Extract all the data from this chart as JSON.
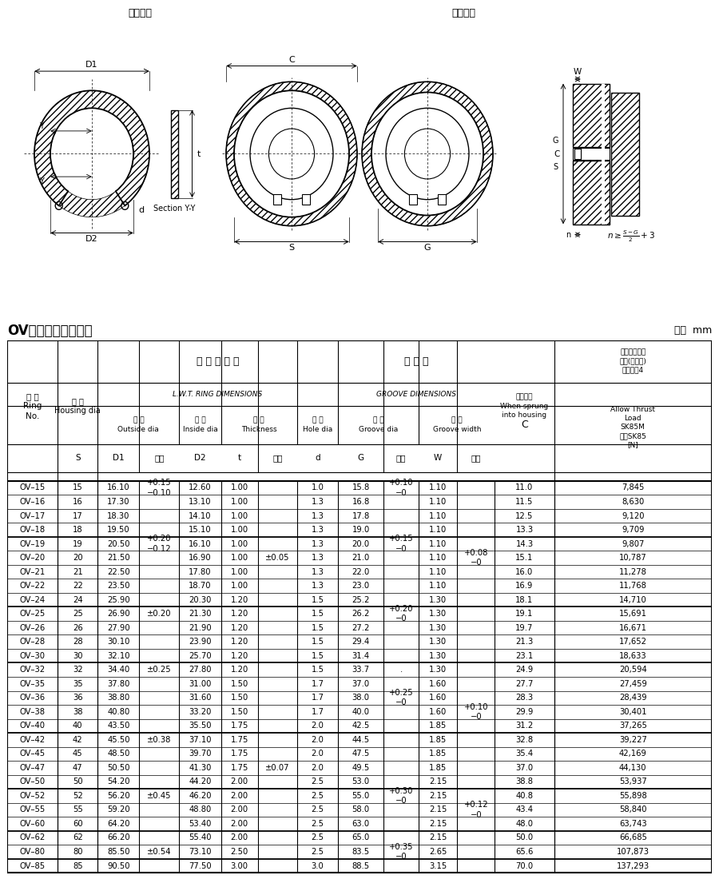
{
  "title_left": "OV型リング（穴用）",
  "title_right": "単位  mm",
  "diagram_label_free": "自由状態",
  "diagram_label_use": "使用状態",
  "rows": [
    [
      "OV–15",
      "15",
      "16.10",
      "+0.15\n−0.10",
      "12.60",
      "1.00",
      "",
      "1.0",
      "15.8",
      "+0.10\n−0",
      "1.10",
      "",
      "11.0",
      "7,845"
    ],
    [
      "OV–16",
      "16",
      "17.30",
      "",
      "13.10",
      "1.00",
      "",
      "1.3",
      "16.8",
      "",
      "1.10",
      "",
      "11.5",
      "8,630"
    ],
    [
      "OV–17",
      "17",
      "18.30",
      "",
      "14.10",
      "1.00",
      "",
      "1.3",
      "17.8",
      "",
      "1.10",
      "",
      "12.5",
      "9,120"
    ],
    [
      "OV–18",
      "18",
      "19.50",
      "",
      "15.10",
      "1.00",
      "",
      "1.3",
      "19.0",
      "",
      "1.10",
      "",
      "13.3",
      "9,709"
    ],
    [
      "OV–19",
      "19",
      "20.50",
      "+0.20\n−0.12",
      "16.10",
      "1.00",
      "",
      "1.3",
      "20.0",
      "+0.15\n−0",
      "1.10",
      "",
      "14.3",
      "9,807"
    ],
    [
      "OV–20",
      "20",
      "21.50",
      "",
      "16.90",
      "1.00",
      "±0.05",
      "1.3",
      "21.0",
      "",
      "1.10",
      "+0.08\n−0",
      "15.1",
      "10,787"
    ],
    [
      "OV–21",
      "21",
      "22.50",
      "",
      "17.80",
      "1.00",
      "",
      "1.3",
      "22.0",
      "",
      "1.10",
      "",
      "16.0",
      "11,278"
    ],
    [
      "OV–22",
      "22",
      "23.50",
      "",
      "18.70",
      "1.00",
      "",
      "1.3",
      "23.0",
      "",
      "1.10",
      "",
      "16.9",
      "11,768"
    ],
    [
      "OV–24",
      "24",
      "25.90",
      "",
      "20.30",
      "1.20",
      "",
      "1.5",
      "25.2",
      "",
      "1.30",
      "",
      "18.1",
      "14,710"
    ],
    [
      "OV–25",
      "25",
      "26.90",
      "±0.20",
      "21.30",
      "1.20",
      "",
      "1.5",
      "26.2",
      "+0.20\n−0",
      "1.30",
      "",
      "19.1",
      "15,691"
    ],
    [
      "OV–26",
      "26",
      "27.90",
      "",
      "21.90",
      "1.20",
      "",
      "1.5",
      "27.2",
      "",
      "1.30",
      "",
      "19.7",
      "16,671"
    ],
    [
      "OV–28",
      "28",
      "30.10",
      "",
      "23.90",
      "1.20",
      "",
      "1.5",
      "29.4",
      "",
      "1.30",
      "",
      "21.3",
      "17,652"
    ],
    [
      "OV–30",
      "30",
      "32.10",
      "",
      "25.70",
      "1.20",
      "",
      "1.5",
      "31.4",
      "",
      "1.30",
      "",
      "23.1",
      "18,633"
    ],
    [
      "OV–32",
      "32",
      "34.40",
      "±0.25",
      "27.80",
      "1.20",
      "",
      "1.5",
      "33.7",
      ".",
      "1.30",
      "",
      "24.9",
      "20,594"
    ],
    [
      "OV–35",
      "35",
      "37.80",
      "",
      "31.00",
      "1.50",
      "",
      "1.7",
      "37.0",
      "",
      "1.60",
      "",
      "27.7",
      "27,459"
    ],
    [
      "OV–36",
      "36",
      "38.80",
      "",
      "31.60",
      "1.50",
      "",
      "1.7",
      "38.0",
      "+0.25\n−0",
      "1.60",
      "",
      "28.3",
      "28,439"
    ],
    [
      "OV–38",
      "38",
      "40.80",
      "",
      "33.20",
      "1.50",
      "",
      "1.7",
      "40.0",
      "",
      "1.60",
      "+0.10\n−0",
      "29.9",
      "30,401"
    ],
    [
      "OV–40",
      "40",
      "43.50",
      "",
      "35.50",
      "1.75",
      "",
      "2.0",
      "42.5",
      "",
      "1.85",
      "",
      "31.2",
      "37,265"
    ],
    [
      "OV–42",
      "42",
      "45.50",
      "±0.38",
      "37.10",
      "1.75",
      "",
      "2.0",
      "44.5",
      "",
      "1.85",
      "",
      "32.8",
      "39,227"
    ],
    [
      "OV–45",
      "45",
      "48.50",
      "",
      "39.70",
      "1.75",
      "",
      "2.0",
      "47.5",
      "",
      "1.85",
      "",
      "35.4",
      "42,169"
    ],
    [
      "OV–47",
      "47",
      "50.50",
      "",
      "41.30",
      "1.75",
      "±0.07",
      "2.0",
      "49.5",
      "",
      "1.85",
      "",
      "37.0",
      "44,130"
    ],
    [
      "OV–50",
      "50",
      "54.20",
      "",
      "44.20",
      "2.00",
      "",
      "2.5",
      "53.0",
      "",
      "2.15",
      "",
      "38.8",
      "53,937"
    ],
    [
      "OV–52",
      "52",
      "56.20",
      "±0.45",
      "46.20",
      "2.00",
      "",
      "2.5",
      "55.0",
      "+0.30\n−0",
      "2.15",
      "",
      "40.8",
      "55,898"
    ],
    [
      "OV–55",
      "55",
      "59.20",
      "",
      "48.80",
      "2.00",
      "",
      "2.5",
      "58.0",
      "",
      "2.15",
      "+0.12\n−0",
      "43.4",
      "58,840"
    ],
    [
      "OV–60",
      "60",
      "64.20",
      "",
      "53.40",
      "2.00",
      "",
      "2.5",
      "63.0",
      "",
      "2.15",
      "",
      "48.0",
      "63,743"
    ],
    [
      "OV–62",
      "62",
      "66.20",
      "",
      "55.40",
      "2.00",
      "",
      "2.5",
      "65.0",
      "",
      "2.15",
      "",
      "50.0",
      "66,685"
    ],
    [
      "OV–80",
      "80",
      "85.50",
      "±0.54",
      "73.10",
      "2.50",
      "",
      "2.5",
      "83.5",
      "+0.35\n−0",
      "2.65",
      "",
      "65.6",
      "107,873"
    ],
    [
      "OV–85",
      "85",
      "90.50",
      "",
      "77.50",
      "3.00",
      "",
      "3.0",
      "88.5",
      "",
      "3.15",
      "",
      "70.0",
      "137,293"
    ]
  ],
  "group_borders": [
    4,
    9,
    13,
    18,
    22,
    25,
    27
  ],
  "bg_color": "#ffffff",
  "line_color": "#000000",
  "text_color": "#000000"
}
